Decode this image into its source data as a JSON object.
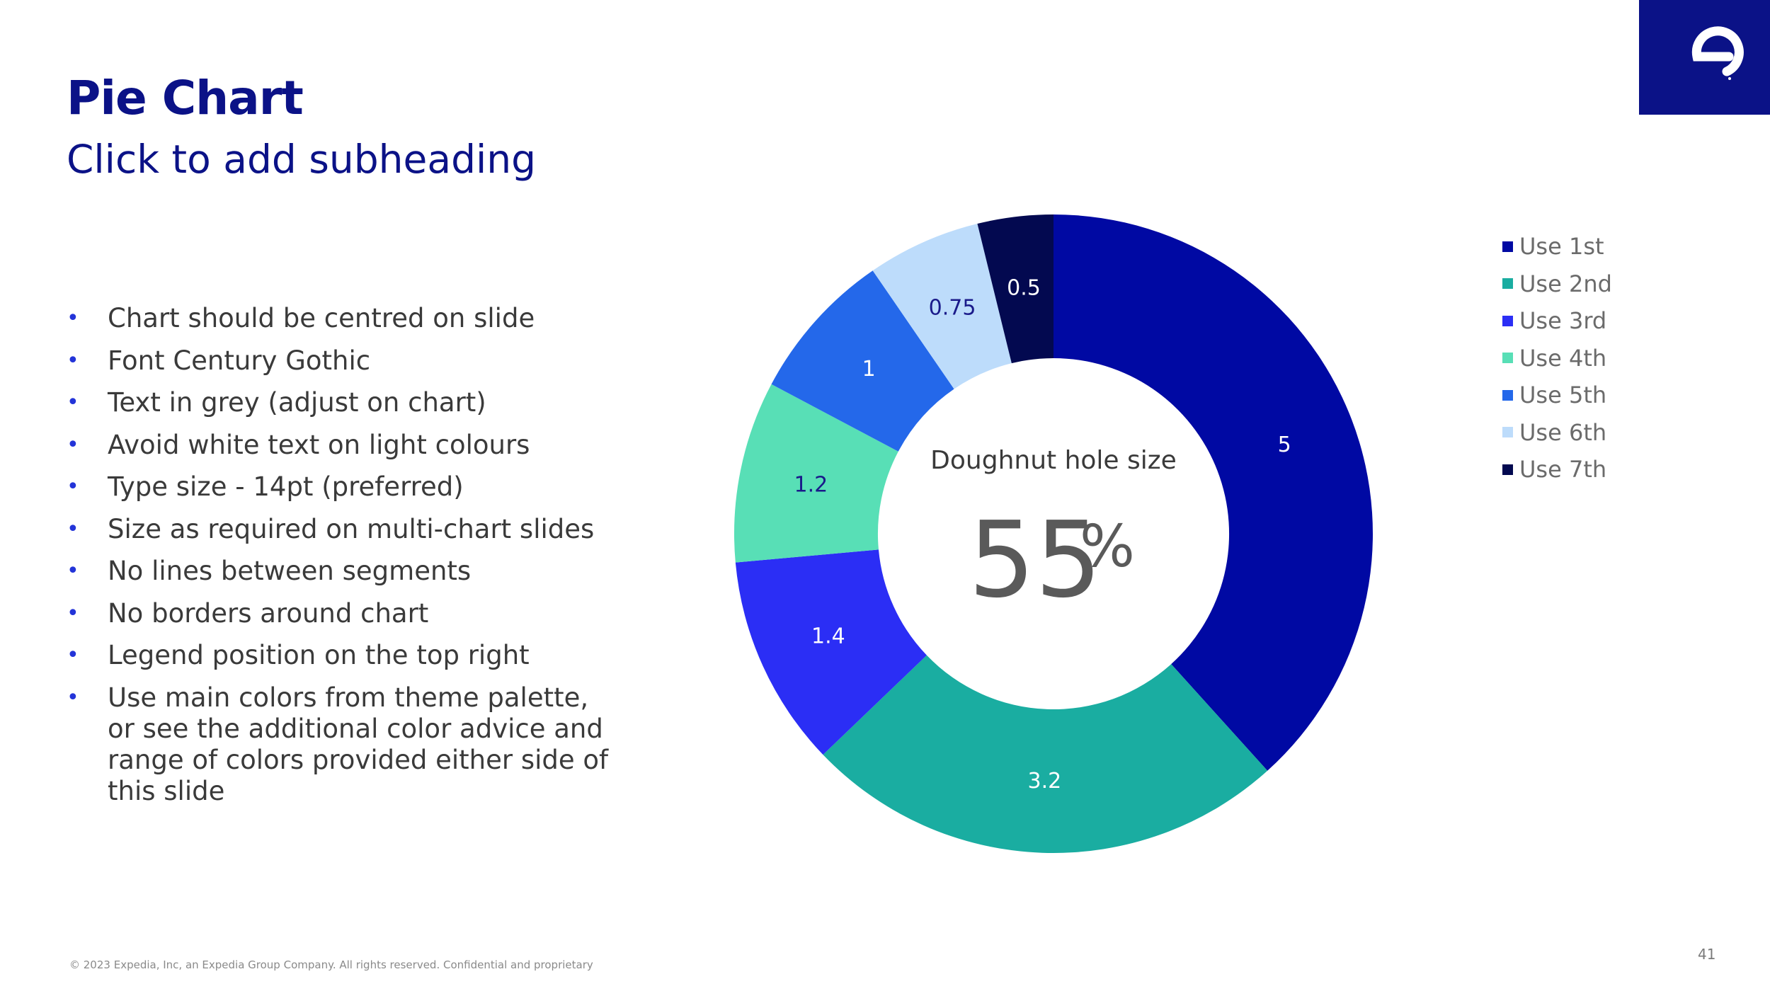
{
  "slide": {
    "title": "Pie Chart",
    "subtitle": "Click to add subheading",
    "footer": "© 2023 Expedia, Inc, an Expedia Group Company. All rights reserved. Confidential and proprietary",
    "page_number": "41"
  },
  "logo": {
    "name": "expedia-e-logo",
    "background": "#0b1287"
  },
  "bullets": [
    "Chart should be centred on slide",
    "Font Century Gothic",
    "Text in grey (adjust on chart)",
    "Avoid white text on light colours",
    "Type size - 14pt (preferred)",
    "Size as required on multi-chart slides",
    "No lines between segments",
    "No borders around chart",
    "Legend position on the top right",
    "Use main colors from theme palette, or see the additional color advice and range of colors provided either side of this slide"
  ],
  "chart_data": {
    "type": "pie",
    "variant": "doughnut",
    "categories": [
      "Use 1st",
      "Use 2nd",
      "Use 3rd",
      "Use 4th",
      "Use 5th",
      "Use 6th",
      "Use 7th"
    ],
    "values": [
      5,
      3.2,
      1.4,
      1.2,
      1,
      0.75,
      0.5
    ],
    "value_labels": [
      "5",
      "3.2",
      "1.4",
      "1.2",
      "1",
      "0.75",
      "0.5"
    ],
    "colors": [
      "#0009a3",
      "#1aada1",
      "#2b2ef5",
      "#58dfb6",
      "#2468ea",
      "#bddcfb",
      "#030950"
    ],
    "label_colors": [
      "#ffffff",
      "#ffffff",
      "#ffffff",
      "#1a1a8a",
      "#ffffff",
      "#1a1a8a",
      "#ffffff"
    ],
    "hole_size_percent": 55,
    "center_caption": "Doughnut hole size",
    "center_value": "55",
    "center_unit": "%",
    "legend_position": "top-right",
    "start_angle": "12 o'clock, clockwise"
  }
}
